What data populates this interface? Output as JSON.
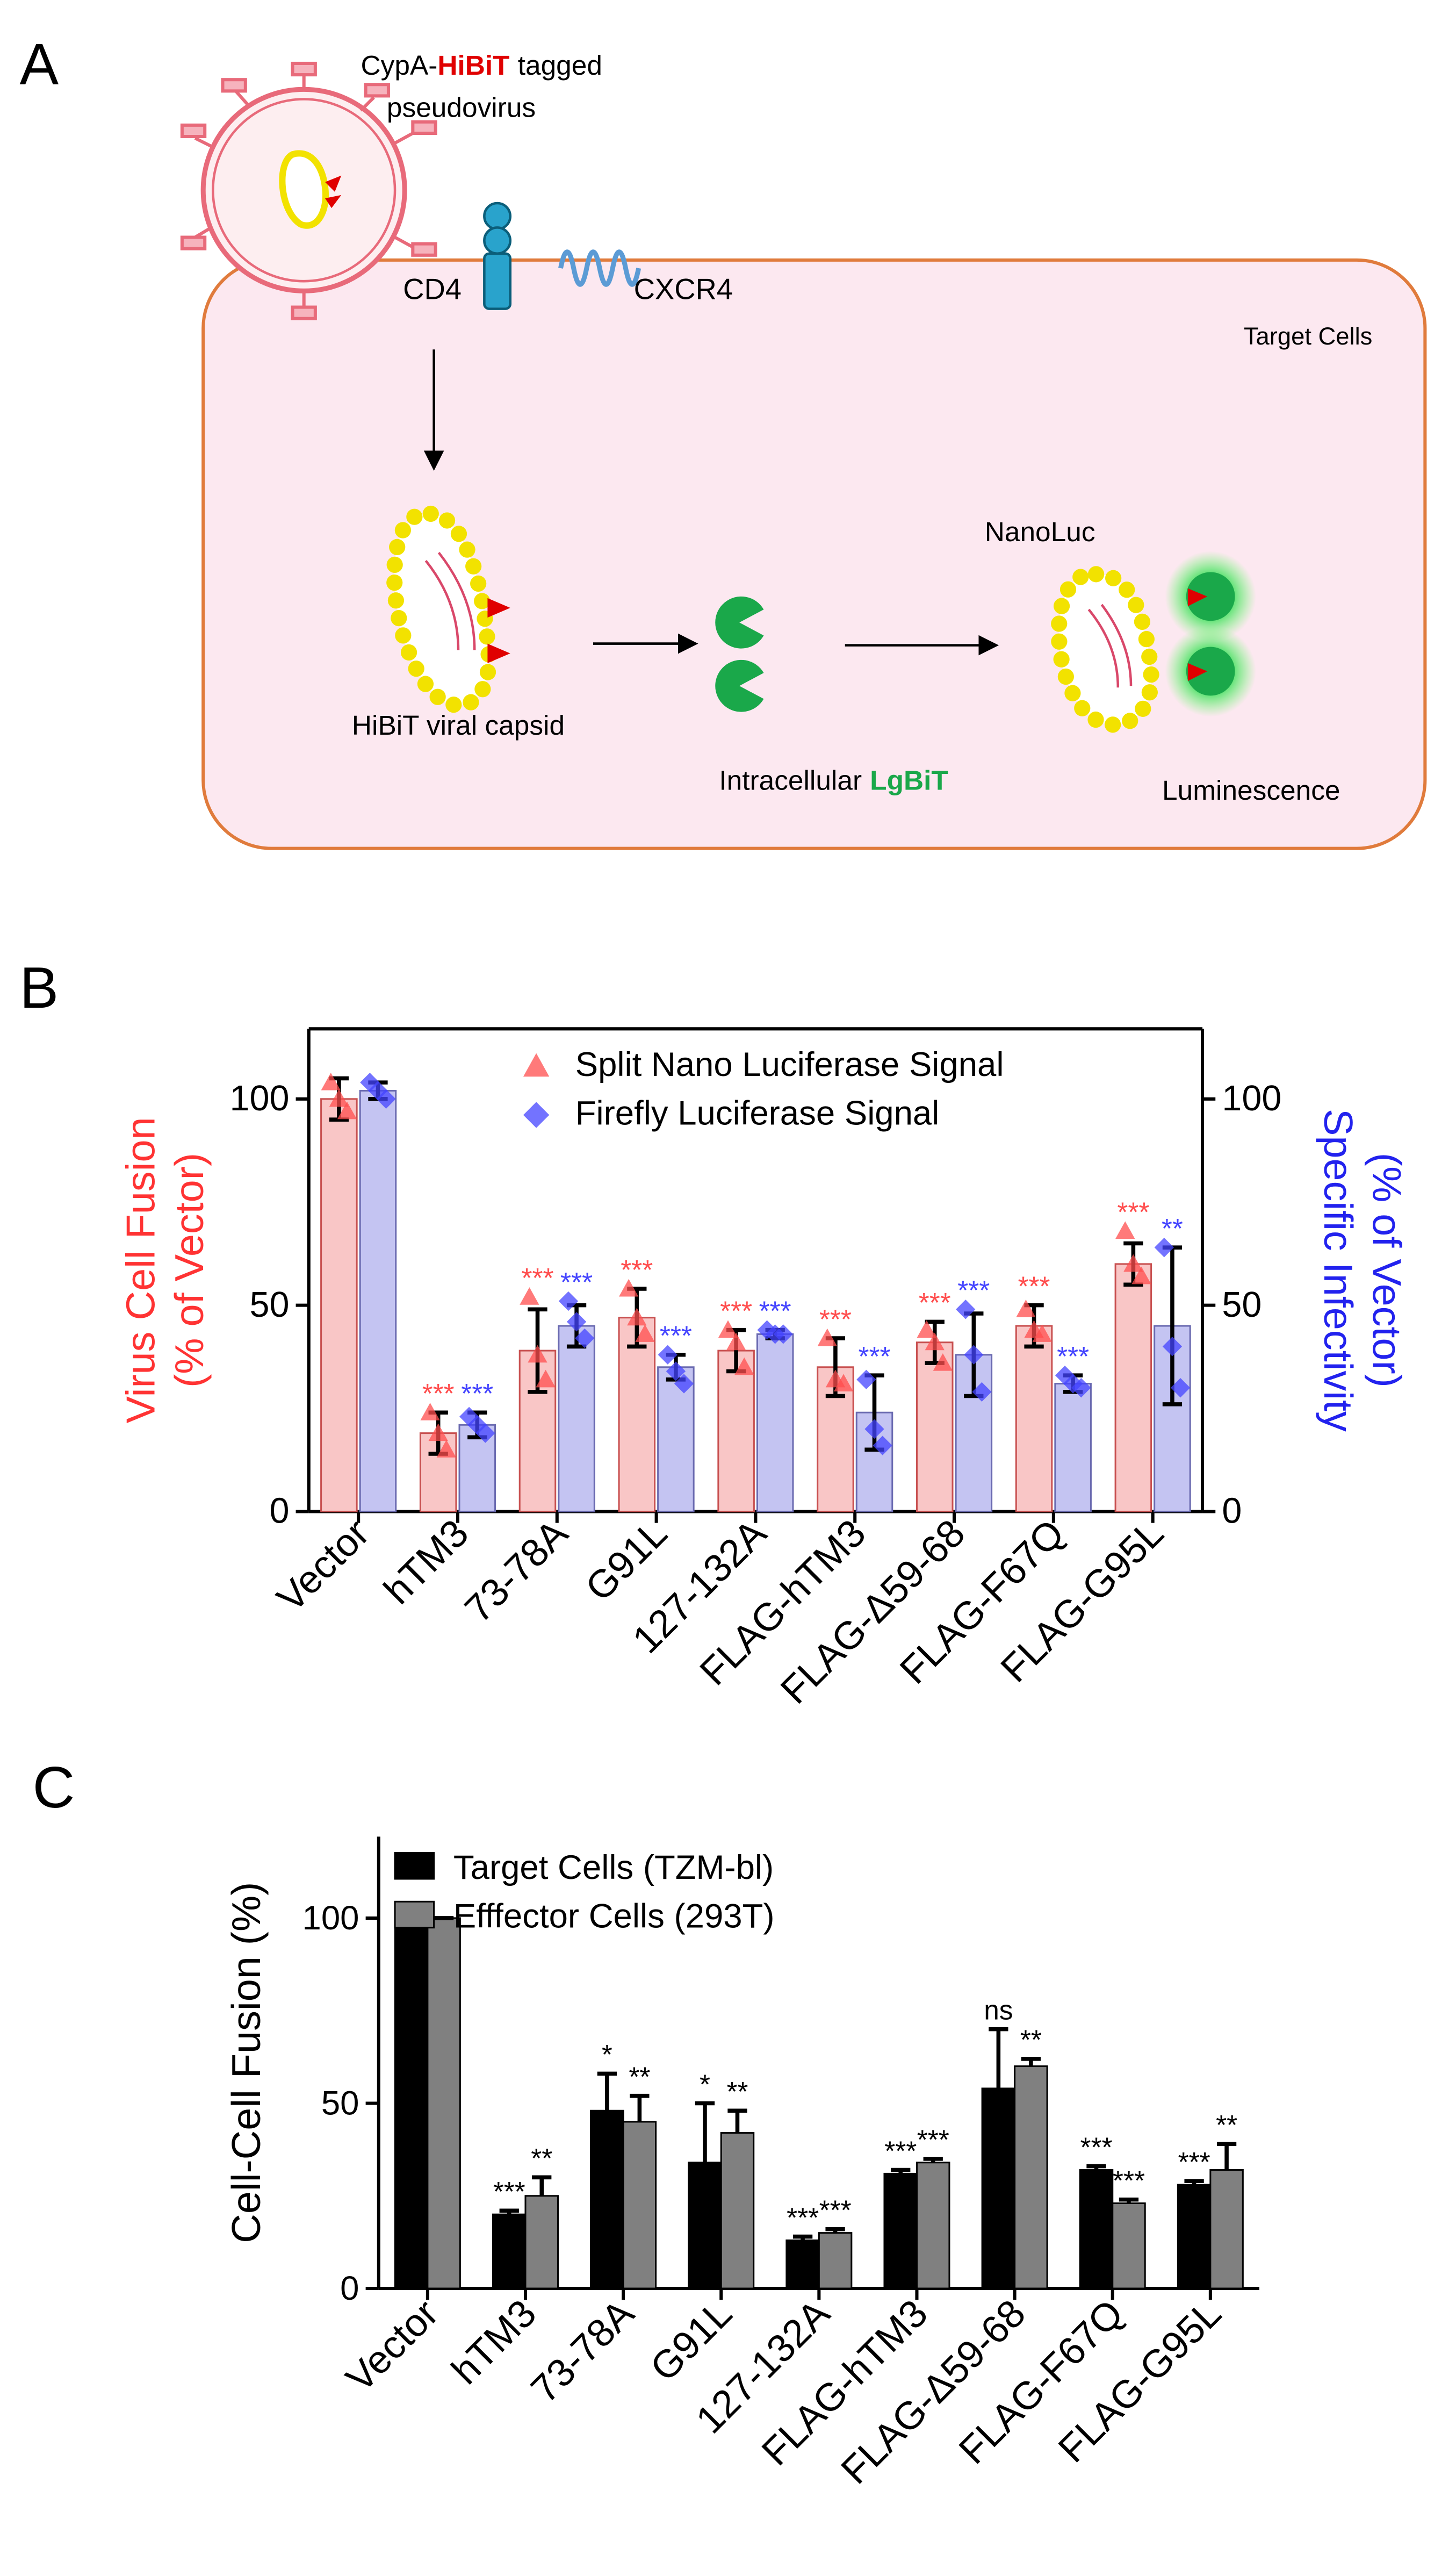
{
  "panel_labels": [
    "A",
    "B",
    "C"
  ],
  "diagram": {
    "virus_label": [
      "CypA-",
      "HiBiT",
      "tagged"
    ],
    "virus_label_line2": "pseudovirus",
    "cd4": "CD4",
    "cxcr4": "CXCR4",
    "target_cells": "Target Cells",
    "capsid": "HiBiT viral capsid",
    "lgbit": [
      "Intracellular",
      "LgBiT"
    ],
    "nanoluc": "NanoLuc",
    "luminescence": "Luminescence"
  },
  "chart_data": [
    {
      "type": "bar",
      "box": true,
      "legend": "upper center",
      "ylabel": [
        "Virus Cell Fusion",
        "(% of Vector)"
      ],
      "ylabel_color": "#ff3333",
      "y2label": [
        "Specific Infectivity",
        "(% of Vector)"
      ],
      "y2label_color": "#2222ee",
      "categories": [
        "Vector",
        "hTM3",
        "73-78A",
        "G91L",
        "127-132A",
        "FLAG-hTM3",
        "FLAG-Δ59-68",
        "FLAG-F67Q",
        "FLAG-G95L"
      ],
      "ylim": [
        0,
        117
      ],
      "yticks": [
        0,
        50,
        100
      ],
      "y2lim": [
        0,
        117
      ],
      "y2ticks": [
        0,
        50,
        100
      ],
      "error_direction": "both",
      "series": [
        {
          "name": "Split Nano Luciferase Signal",
          "color": "#ff4d4d",
          "bar_color": "#f9c6c6",
          "bar_stroke": "#c85050",
          "marker": "triangle",
          "values": [
            100,
            19,
            39,
            47,
            39,
            35,
            41,
            45,
            60
          ],
          "errors": [
            5,
            5,
            10,
            7,
            5,
            7,
            5,
            5,
            5
          ],
          "points": [
            [
              104,
              100,
              97
            ],
            [
              24,
              19,
              15
            ],
            [
              52,
              38,
              32
            ],
            [
              54,
              47,
              43
            ],
            [
              44,
              41,
              35
            ],
            [
              42,
              32,
              31
            ],
            [
              44,
              41,
              36
            ],
            [
              49,
              44,
              43
            ],
            [
              68,
              60,
              57
            ]
          ],
          "annotations": [
            null,
            "***",
            "***",
            "***",
            "***",
            "***",
            "***",
            "***",
            "***"
          ]
        },
        {
          "name": "Firefly Luciferase Signal",
          "color": "#4444ff",
          "bar_color": "#c4c4f2",
          "bar_stroke": "#6a6ab0",
          "marker": "diamond",
          "axis": "y2",
          "values": [
            102,
            21,
            45,
            35,
            43,
            24,
            38,
            31,
            45
          ],
          "errors": [
            2,
            3,
            5,
            3,
            1,
            9,
            10,
            2,
            19
          ],
          "points": [
            [
              104,
              102,
              100
            ],
            [
              23,
              21,
              19
            ],
            [
              51,
              46,
              42
            ],
            [
              38,
              34,
              31
            ],
            [
              44,
              43,
              43
            ],
            [
              32,
              20,
              16
            ],
            [
              49,
              38,
              29
            ],
            [
              33,
              31,
              30
            ],
            [
              64,
              40,
              30
            ]
          ],
          "annotations": [
            null,
            "***",
            "***",
            "***",
            "***",
            "***",
            "***",
            "***",
            "**"
          ]
        }
      ]
    },
    {
      "type": "bar",
      "box": false,
      "legend": "upper left",
      "ylabel": [
        "Cell-Cell Fusion (%)"
      ],
      "ylabel_color": "#000000",
      "categories": [
        "Vector",
        "hTM3",
        "73-78A",
        "G91L",
        "127-132A",
        "FLAG-hTM3",
        "FLAG-Δ59-68",
        "FLAG-F67Q",
        "FLAG-G95L"
      ],
      "ylim": [
        0,
        122
      ],
      "yticks": [
        0,
        50,
        100
      ],
      "error_direction": "up",
      "series": [
        {
          "name": "Target Cells (TZM-bl)",
          "color": "#000000",
          "bar_color": "#000000",
          "bar_stroke": "#000000",
          "values": [
            100,
            20,
            48,
            34,
            13,
            31,
            54,
            32,
            28
          ],
          "errors": [
            0,
            1,
            10,
            16,
            1,
            1,
            16,
            1,
            1
          ],
          "annotations": [
            null,
            "***",
            "*",
            "*",
            "***",
            "***",
            "ns",
            "***",
            "***"
          ]
        },
        {
          "name": "Efffector Cells (293T)",
          "color": "#000000",
          "bar_color": "#808080",
          "bar_stroke": "#000000",
          "values": [
            100,
            25,
            45,
            42,
            15,
            34,
            60,
            23,
            32
          ],
          "errors": [
            0,
            5,
            7,
            6,
            1,
            1,
            2,
            1,
            7
          ],
          "annotations": [
            null,
            "**",
            "**",
            "**",
            "***",
            "***",
            "**",
            "***",
            "**"
          ]
        }
      ]
    }
  ]
}
